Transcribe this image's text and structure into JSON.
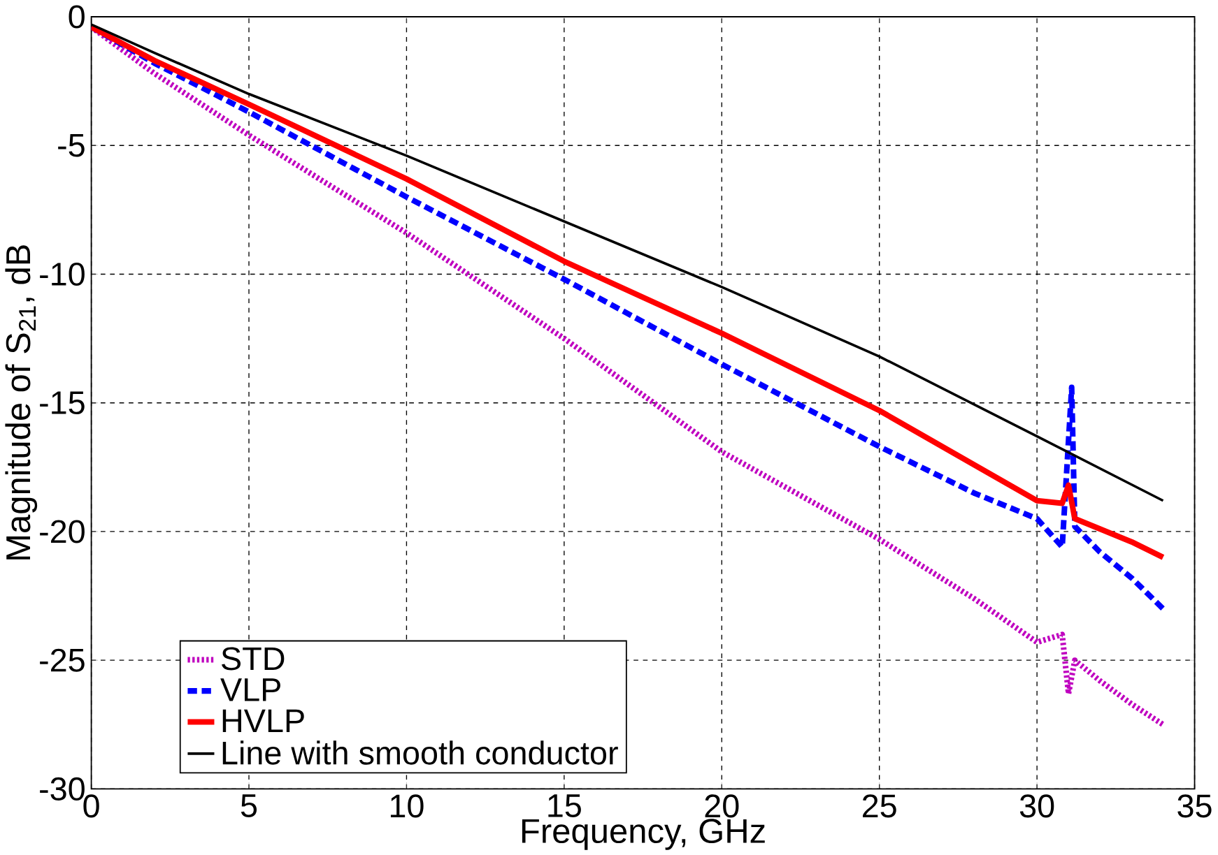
{
  "chart_data": {
    "type": "line",
    "xlabel": "Frequency, GHz",
    "ylabel": "Magnitude of S$_{21}$, dB",
    "xlim": [
      0,
      35
    ],
    "ylim": [
      -30,
      0
    ],
    "xticks": [
      0,
      5,
      10,
      15,
      20,
      25,
      30,
      35
    ],
    "yticks": [
      -30,
      -25,
      -20,
      -15,
      -10,
      -5,
      0
    ],
    "grid": true,
    "legend": "bottom left",
    "marker": "none",
    "series": [
      {
        "name": "STD",
        "color": "#bf00bf",
        "line_style": "dotted",
        "x": [
          0,
          2,
          5,
          10,
          15,
          20,
          25,
          28,
          30,
          30.8,
          31.0,
          31.2,
          32,
          33,
          34
        ],
        "values": [
          -0.4,
          -2.2,
          -4.6,
          -8.4,
          -12.5,
          -16.9,
          -20.3,
          -22.6,
          -24.3,
          -24.0,
          -26.3,
          -25.0,
          -25.8,
          -26.7,
          -27.5
        ]
      },
      {
        "name": "VLP",
        "color": "#0000ff",
        "line_style": "dashed",
        "x": [
          0,
          2,
          5,
          10,
          15,
          20,
          25,
          28,
          30,
          30.8,
          31.1,
          31.2,
          32,
          33,
          34
        ],
        "values": [
          -0.4,
          -1.8,
          -3.7,
          -7.0,
          -10.2,
          -13.5,
          -16.7,
          -18.5,
          -19.5,
          -20.6,
          -14.4,
          -19.8,
          -20.8,
          -21.8,
          -23.0
        ]
      },
      {
        "name": "HVLP",
        "color": "#ff0000",
        "line_style": "solid",
        "x": [
          0,
          2,
          5,
          10,
          15,
          20,
          25,
          28,
          30,
          30.8,
          31.0,
          31.2,
          32,
          33,
          34
        ],
        "values": [
          -0.4,
          -1.7,
          -3.4,
          -6.3,
          -9.5,
          -12.3,
          -15.3,
          -17.4,
          -18.8,
          -18.9,
          -18.2,
          -19.5,
          -19.9,
          -20.4,
          -21.0
        ]
      },
      {
        "name": "Line with smooth conductor",
        "color": "#000000",
        "line_style": "solid",
        "x": [
          0,
          2,
          5,
          10,
          15,
          20,
          25,
          30,
          34
        ],
        "values": [
          -0.3,
          -1.4,
          -3.0,
          -5.4,
          -7.95,
          -10.5,
          -13.2,
          -16.3,
          -18.8
        ]
      }
    ]
  }
}
